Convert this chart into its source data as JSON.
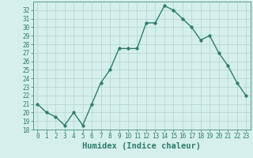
{
  "x": [
    0,
    1,
    2,
    3,
    4,
    5,
    6,
    7,
    8,
    9,
    10,
    11,
    12,
    13,
    14,
    15,
    16,
    17,
    18,
    19,
    20,
    21,
    22,
    23
  ],
  "y": [
    21,
    20,
    19.5,
    18.5,
    20,
    18.5,
    21,
    23.5,
    25,
    27.5,
    27.5,
    27.5,
    30.5,
    30.5,
    32.5,
    32,
    31,
    30,
    28.5,
    29,
    27,
    25.5,
    23.5,
    22
  ],
  "line_color": "#2e7d6e",
  "marker": "o",
  "marker_size": 2.5,
  "line_width": 1.0,
  "xlabel": "Humidex (Indice chaleur)",
  "xlim": [
    -0.5,
    23.5
  ],
  "ylim": [
    18,
    33
  ],
  "yticks": [
    18,
    19,
    20,
    21,
    22,
    23,
    24,
    25,
    26,
    27,
    28,
    29,
    30,
    31,
    32
  ],
  "xticks": [
    0,
    1,
    2,
    3,
    4,
    5,
    6,
    7,
    8,
    9,
    10,
    11,
    12,
    13,
    14,
    15,
    16,
    17,
    18,
    19,
    20,
    21,
    22,
    23
  ],
  "bg_color": "#d5efec",
  "grid_color": "#b0d4d0",
  "tick_fontsize": 5.5,
  "xlabel_fontsize": 7.5,
  "tick_color": "#2e7d6e",
  "axis_color": "#5a9a90"
}
